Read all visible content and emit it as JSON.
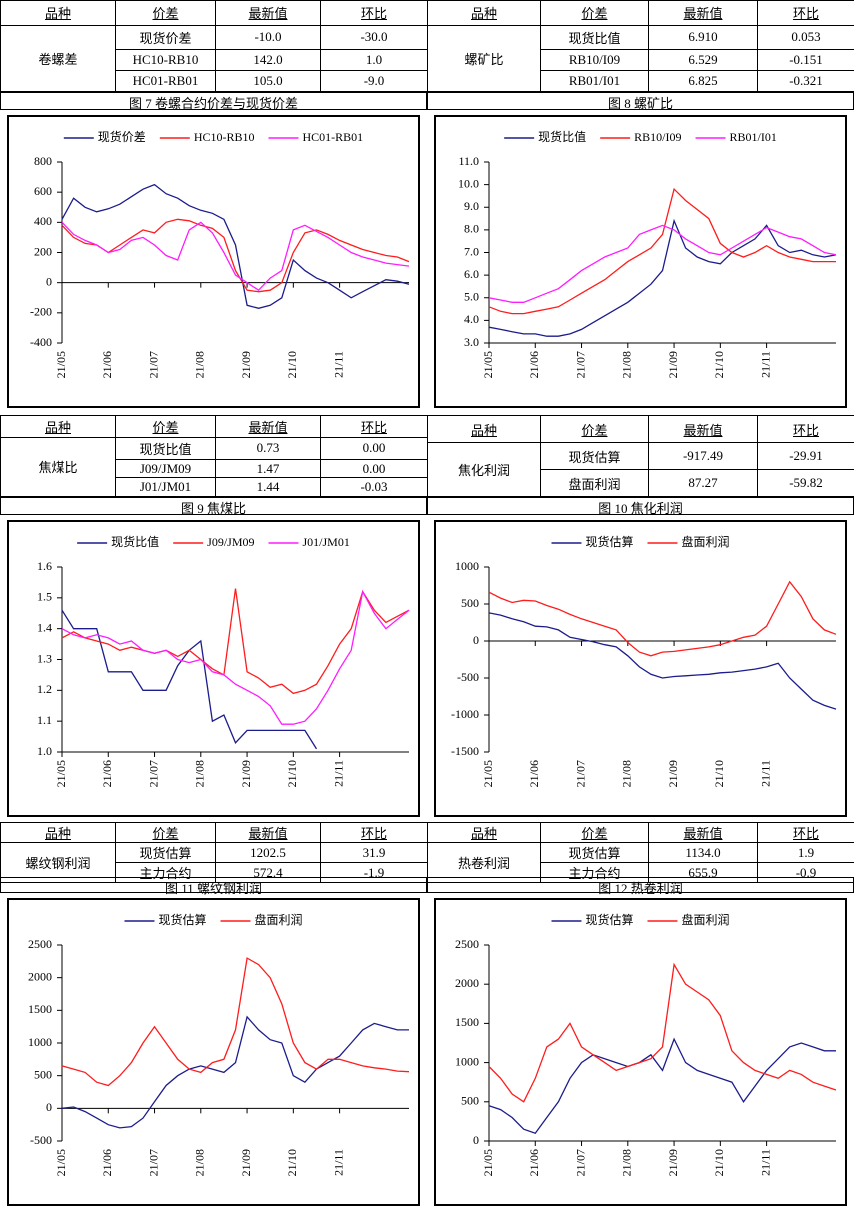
{
  "tables": [
    {
      "header": [
        "品种",
        "价差",
        "最新值",
        "环比"
      ],
      "name": "卷螺差",
      "rows": [
        [
          "现货价差",
          "-10.0",
          "-30.0"
        ],
        [
          "HC10-RB10",
          "142.0",
          "1.0"
        ],
        [
          "HC01-RB01",
          "105.0",
          "-9.0"
        ]
      ]
    },
    {
      "header": [
        "品种",
        "价差",
        "最新值",
        "环比"
      ],
      "name": "螺矿比",
      "rows": [
        [
          "现货比值",
          "6.910",
          "0.053"
        ],
        [
          "RB10/I09",
          "6.529",
          "-0.151"
        ],
        [
          "RB01/I01",
          "6.825",
          "-0.321"
        ]
      ]
    },
    {
      "header": [
        "品种",
        "价差",
        "最新值",
        "环比"
      ],
      "name": "焦煤比",
      "rows": [
        [
          "现货比值",
          "0.73",
          "0.00"
        ],
        [
          "J09/JM09",
          "1.47",
          "0.00"
        ],
        [
          "J01/JM01",
          "1.44",
          "-0.03"
        ]
      ]
    },
    {
      "header": [
        "品种",
        "价差",
        "最新值",
        "环比"
      ],
      "name": "焦化利润",
      "rows": [
        [
          "现货估算",
          "-917.49",
          "-29.91"
        ],
        [
          "盘面利润",
          "87.27",
          "-59.82"
        ]
      ]
    },
    {
      "header": [
        "品种",
        "价差",
        "最新值",
        "环比"
      ],
      "name": "螺纹钢利润",
      "rows": [
        [
          "现货估算",
          "1202.5",
          "31.9"
        ],
        [
          "主力合约",
          "572.4",
          "-1.9"
        ]
      ]
    },
    {
      "header": [
        "品种",
        "价差",
        "最新值",
        "环比"
      ],
      "name": "热卷利润",
      "rows": [
        [
          "现货估算",
          "1134.0",
          "1.9"
        ],
        [
          "主力合约",
          "655.9",
          "-0.9"
        ]
      ]
    }
  ],
  "chart_data": [
    {
      "type": "line",
      "title": "图 7 卷螺合约价差与现货价差",
      "categories": [
        "21/05",
        null,
        null,
        null,
        "21/06",
        null,
        null,
        null,
        "21/07",
        null,
        null,
        null,
        "21/08",
        null,
        null,
        null,
        "21/09",
        null,
        null,
        null,
        "21/10",
        null,
        null,
        null,
        "21/11",
        null,
        null,
        null,
        null,
        null,
        null
      ],
      "ylim": [
        -400,
        800
      ],
      "yticks": [
        -400,
        -200,
        0,
        200,
        400,
        600,
        800
      ],
      "series": [
        {
          "name": "现货价差",
          "color": "#1c1c8c",
          "values": [
            420,
            560,
            500,
            470,
            490,
            520,
            570,
            620,
            650,
            590,
            560,
            510,
            480,
            460,
            420,
            250,
            -150,
            -170,
            -150,
            -100,
            150,
            80,
            30,
            0,
            -50,
            -100,
            -60,
            -20,
            20,
            10,
            -10
          ]
        },
        {
          "name": "HC10-RB10",
          "color": "#ff1c1c",
          "values": [
            380,
            300,
            260,
            250,
            200,
            250,
            300,
            350,
            330,
            400,
            420,
            410,
            380,
            360,
            300,
            80,
            -50,
            -60,
            -50,
            0,
            200,
            330,
            350,
            320,
            280,
            250,
            220,
            200,
            180,
            170,
            140
          ]
        },
        {
          "name": "HC01-RB01",
          "color": "#ff1cff",
          "values": [
            400,
            320,
            280,
            250,
            200,
            220,
            280,
            300,
            250,
            180,
            150,
            350,
            400,
            330,
            200,
            50,
            0,
            -50,
            30,
            80,
            350,
            380,
            340,
            300,
            250,
            200,
            170,
            150,
            130,
            120,
            110
          ]
        }
      ]
    },
    {
      "type": "line",
      "title": "图 8 螺矿比",
      "categories": [
        "21/05",
        null,
        null,
        null,
        "21/06",
        null,
        null,
        null,
        "21/07",
        null,
        null,
        null,
        "21/08",
        null,
        null,
        null,
        "21/09",
        null,
        null,
        null,
        "21/10",
        null,
        null,
        null,
        "21/11",
        null,
        null,
        null,
        null,
        null,
        null
      ],
      "ylim": [
        3,
        11
      ],
      "yticks": [
        {
          "value": 3,
          "label": "3.0"
        },
        {
          "value": 4,
          "label": "4.0"
        },
        {
          "value": 5,
          "label": "5.0"
        },
        {
          "value": 6,
          "label": "6.0"
        },
        {
          "value": 7,
          "label": "7.0"
        },
        {
          "value": 8,
          "label": "8.0"
        },
        {
          "value": 9,
          "label": "9.0"
        },
        {
          "value": 10,
          "label": "10.0"
        },
        {
          "value": 11,
          "label": "11.0"
        }
      ],
      "series": [
        {
          "name": "现货比值",
          "color": "#1c1c8c",
          "values": [
            3.7,
            3.6,
            3.5,
            3.4,
            3.4,
            3.3,
            3.3,
            3.4,
            3.6,
            3.9,
            4.2,
            4.5,
            4.8,
            5.2,
            5.6,
            6.2,
            8.4,
            7.2,
            6.8,
            6.6,
            6.5,
            7.0,
            7.3,
            7.6,
            8.2,
            7.3,
            7.0,
            7.1,
            6.9,
            6.8,
            6.9
          ]
        },
        {
          "name": "RB10/I09",
          "color": "#ff1c1c",
          "values": [
            4.6,
            4.4,
            4.3,
            4.3,
            4.4,
            4.5,
            4.6,
            4.9,
            5.2,
            5.5,
            5.8,
            6.2,
            6.6,
            6.9,
            7.2,
            7.8,
            9.8,
            9.3,
            8.9,
            8.5,
            7.4,
            7.0,
            6.8,
            7.0,
            7.3,
            7.0,
            6.8,
            6.7,
            6.6,
            6.6,
            6.6
          ]
        },
        {
          "name": "RB01/I01",
          "color": "#ff1cff",
          "values": [
            5.0,
            4.9,
            4.8,
            4.8,
            5.0,
            5.2,
            5.4,
            5.8,
            6.2,
            6.5,
            6.8,
            7.0,
            7.2,
            7.8,
            8.0,
            8.2,
            8.0,
            7.6,
            7.3,
            7.0,
            6.9,
            7.2,
            7.5,
            7.8,
            8.1,
            7.9,
            7.7,
            7.6,
            7.3,
            7.0,
            6.9
          ]
        }
      ]
    },
    {
      "type": "line",
      "title": "图 9 焦煤比",
      "categories": [
        "21/05",
        null,
        null,
        null,
        "21/06",
        null,
        null,
        null,
        "21/07",
        null,
        null,
        null,
        "21/08",
        null,
        null,
        null,
        "21/09",
        null,
        null,
        null,
        "21/10",
        null,
        null,
        null,
        "21/11",
        null,
        null,
        null,
        null,
        null,
        null
      ],
      "ylim": [
        1,
        1.6
      ],
      "yticks": [
        {
          "value": 1,
          "label": "1.0"
        },
        1.1,
        1.2,
        1.3,
        1.4,
        1.5,
        1.6
      ],
      "series": [
        {
          "name": "现货比值",
          "color": "#1c1c8c",
          "values": [
            1.46,
            1.4,
            1.4,
            1.4,
            1.26,
            1.26,
            1.26,
            1.2,
            1.2,
            1.2,
            1.28,
            1.33,
            1.36,
            1.1,
            1.12,
            1.03,
            1.07,
            1.07,
            1.07,
            1.07,
            1.07,
            1.07,
            1.01,
            null,
            null,
            null,
            null,
            null,
            null,
            null,
            null
          ]
        },
        {
          "name": "J09/JM09",
          "color": "#ff1c1c",
          "values": [
            1.37,
            1.39,
            1.37,
            1.36,
            1.35,
            1.33,
            1.34,
            1.33,
            1.32,
            1.33,
            1.31,
            1.33,
            1.3,
            1.27,
            1.25,
            1.53,
            1.26,
            1.24,
            1.21,
            1.22,
            1.19,
            1.2,
            1.22,
            1.28,
            1.35,
            1.4,
            1.52,
            1.46,
            1.42,
            1.44,
            1.46
          ]
        },
        {
          "name": "J01/JM01",
          "color": "#ff1cff",
          "values": [
            1.4,
            1.38,
            1.37,
            1.38,
            1.37,
            1.35,
            1.36,
            1.33,
            1.32,
            1.33,
            1.3,
            1.29,
            1.3,
            1.26,
            1.25,
            1.22,
            1.2,
            1.18,
            1.15,
            1.09,
            1.09,
            1.1,
            1.14,
            1.2,
            1.27,
            1.33,
            1.52,
            1.45,
            1.4,
            1.43,
            1.46
          ]
        }
      ]
    },
    {
      "type": "line",
      "title": "图 10 焦化利润",
      "categories": [
        "21/05",
        null,
        null,
        null,
        "21/06",
        null,
        null,
        null,
        "21/07",
        null,
        null,
        null,
        "21/08",
        null,
        null,
        null,
        "21/09",
        null,
        null,
        null,
        "21/10",
        null,
        null,
        null,
        "21/11",
        null,
        null,
        null,
        null,
        null,
        null
      ],
      "ylim": [
        -1500,
        1000
      ],
      "yticks": [
        -1500,
        -1000,
        -500,
        0,
        500,
        1000
      ],
      "series": [
        {
          "name": "现货估算",
          "color": "#1c1c8c",
          "values": [
            380,
            350,
            300,
            260,
            200,
            190,
            150,
            50,
            20,
            -10,
            -50,
            -80,
            -200,
            -350,
            -450,
            -500,
            -480,
            -470,
            -460,
            -450,
            -430,
            -420,
            -400,
            -380,
            -350,
            -300,
            -500,
            -650,
            -800,
            -870,
            -920
          ]
        },
        {
          "name": "盘面利润",
          "color": "#ff1c1c",
          "values": [
            660,
            580,
            520,
            550,
            540,
            480,
            430,
            360,
            300,
            250,
            200,
            150,
            -20,
            -150,
            -200,
            -150,
            -140,
            -120,
            -100,
            -80,
            -50,
            0,
            50,
            80,
            200,
            500,
            800,
            600,
            300,
            150,
            90
          ]
        }
      ]
    },
    {
      "type": "line",
      "title": "图 11 螺纹钢利润",
      "categories": [
        "21/05",
        null,
        null,
        null,
        "21/06",
        null,
        null,
        null,
        "21/07",
        null,
        null,
        null,
        "21/08",
        null,
        null,
        null,
        "21/09",
        null,
        null,
        null,
        "21/10",
        null,
        null,
        null,
        "21/11",
        null,
        null,
        null,
        null,
        null,
        null
      ],
      "ylim": [
        -500,
        2500
      ],
      "yticks": [
        -500,
        0,
        500,
        1000,
        1500,
        2000,
        2500
      ],
      "series": [
        {
          "name": "现货估算",
          "color": "#1c1c8c",
          "values": [
            0,
            20,
            -50,
            -150,
            -250,
            -300,
            -280,
            -150,
            100,
            350,
            500,
            600,
            650,
            600,
            550,
            700,
            1400,
            1200,
            1050,
            1000,
            500,
            400,
            600,
            700,
            800,
            1000,
            1200,
            1300,
            1250,
            1200,
            1200
          ]
        },
        {
          "name": "盘面利润",
          "color": "#ff1c1c",
          "values": [
            650,
            600,
            550,
            400,
            350,
            500,
            700,
            1000,
            1250,
            1000,
            750,
            600,
            550,
            700,
            750,
            1200,
            2300,
            2200,
            2000,
            1600,
            1000,
            700,
            600,
            750,
            750,
            700,
            650,
            620,
            600,
            570,
            560
          ]
        }
      ]
    },
    {
      "type": "line",
      "title": "图 12 热卷利润",
      "categories": [
        "21/05",
        null,
        null,
        null,
        "21/06",
        null,
        null,
        null,
        "21/07",
        null,
        null,
        null,
        "21/08",
        null,
        null,
        null,
        "21/09",
        null,
        null,
        null,
        "21/10",
        null,
        null,
        null,
        "21/11",
        null,
        null,
        null,
        null,
        null,
        null
      ],
      "ylim": [
        0,
        2500
      ],
      "yticks": [
        0,
        500,
        1000,
        1500,
        2000,
        2500
      ],
      "series": [
        {
          "name": "现货估算",
          "color": "#1c1c8c",
          "values": [
            450,
            400,
            300,
            150,
            100,
            300,
            500,
            800,
            1000,
            1100,
            1050,
            1000,
            950,
            1000,
            1100,
            900,
            1300,
            1000,
            900,
            850,
            800,
            750,
            500,
            700,
            900,
            1050,
            1200,
            1250,
            1200,
            1150,
            1150
          ]
        },
        {
          "name": "盘面利润",
          "color": "#ff1c1c",
          "values": [
            950,
            800,
            600,
            500,
            800,
            1200,
            1300,
            1500,
            1200,
            1100,
            1000,
            900,
            950,
            1000,
            1050,
            1200,
            2250,
            2000,
            1900,
            1800,
            1600,
            1150,
            1000,
            900,
            850,
            800,
            900,
            850,
            750,
            700,
            650
          ]
        }
      ]
    }
  ]
}
